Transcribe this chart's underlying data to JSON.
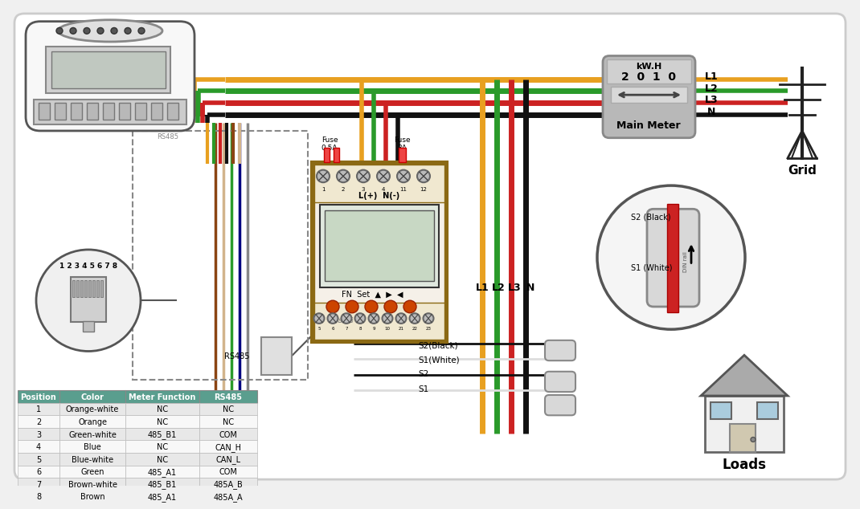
{
  "bg_color": "#f0f0f0",
  "table_header_color": "#5a9e8e",
  "table_row_odd": "#e8e8e8",
  "table_row_even": "#f8f8f8",
  "table_data": [
    [
      "1",
      "Orange-white",
      "NC",
      "NC"
    ],
    [
      "2",
      "Orange",
      "NC",
      "NC"
    ],
    [
      "3",
      "Green-white",
      "485_B1",
      "COM"
    ],
    [
      "4",
      "Blue",
      "NC",
      "CAN_H"
    ],
    [
      "5",
      "Blue-white",
      "NC",
      "CAN_L"
    ],
    [
      "6",
      "Green",
      "485_A1",
      "COM"
    ],
    [
      "7",
      "Brown-white",
      "485_B1",
      "485A_B"
    ],
    [
      "8",
      "Brown",
      "485_A1",
      "485A_A"
    ]
  ],
  "table_headers": [
    "Position",
    "Color",
    "Meter Function",
    "RS485"
  ],
  "wire_L1": "#e8a020",
  "wire_L2": "#2a9a2a",
  "wire_L3": "#cc2222",
  "wire_N": "#111111",
  "wire_brown": "#8B4513",
  "wire_brown_white": "#D2B48C",
  "wire_green": "#2a9a2a",
  "wire_blue": "#000080",
  "meter_border": "#8B6914",
  "led_color": "#cc4400",
  "tower_wire_colors": [
    "#e8a020",
    "#2a9a2a",
    "#cc2222"
  ]
}
